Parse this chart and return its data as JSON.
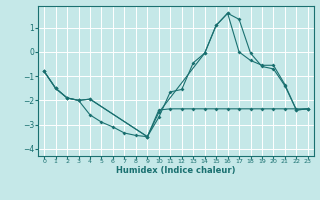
{
  "xlabel": "Humidex (Indice chaleur)",
  "background_color": "#c5e8e8",
  "grid_color": "#ffffff",
  "line_color": "#1a7070",
  "xlim": [
    -0.5,
    23.5
  ],
  "ylim": [
    -4.3,
    1.9
  ],
  "yticks": [
    -4,
    -3,
    -2,
    -1,
    0,
    1
  ],
  "xticks": [
    0,
    1,
    2,
    3,
    4,
    5,
    6,
    7,
    8,
    9,
    10,
    11,
    12,
    13,
    14,
    15,
    16,
    17,
    18,
    19,
    20,
    21,
    22,
    23
  ],
  "line1_x": [
    0,
    1,
    2,
    3,
    4,
    5,
    6,
    7,
    8,
    9,
    10,
    11,
    12,
    13,
    14,
    15,
    16,
    17,
    18,
    19,
    20,
    21,
    22,
    23
  ],
  "line1_y": [
    -0.8,
    -1.5,
    -1.9,
    -2.0,
    -2.6,
    -2.9,
    -3.1,
    -3.35,
    -3.45,
    -3.5,
    -2.4,
    -2.35,
    -2.35,
    -2.35,
    -2.35,
    -2.35,
    -2.35,
    -2.35,
    -2.35,
    -2.35,
    -2.35,
    -2.35,
    -2.35,
    -2.35
  ],
  "line2_x": [
    0,
    1,
    2,
    3,
    4,
    9,
    10,
    11,
    12,
    13,
    14,
    15,
    16,
    17,
    18,
    19,
    20,
    21,
    22,
    23
  ],
  "line2_y": [
    -0.8,
    -1.5,
    -1.9,
    -2.0,
    -1.95,
    -3.5,
    -2.7,
    -1.65,
    -1.55,
    -0.45,
    -0.05,
    1.1,
    1.6,
    1.35,
    -0.05,
    -0.6,
    -0.7,
    -1.4,
    -2.4,
    -2.35
  ],
  "line3_x": [
    0,
    1,
    2,
    3,
    4,
    9,
    10,
    14,
    15,
    16,
    17,
    18,
    19,
    20,
    21,
    22,
    23
  ],
  "line3_y": [
    -0.8,
    -1.5,
    -1.9,
    -2.0,
    -1.95,
    -3.5,
    -2.5,
    -0.05,
    1.1,
    1.6,
    0.0,
    -0.35,
    -0.55,
    -0.55,
    -1.35,
    -2.4,
    -2.35
  ]
}
